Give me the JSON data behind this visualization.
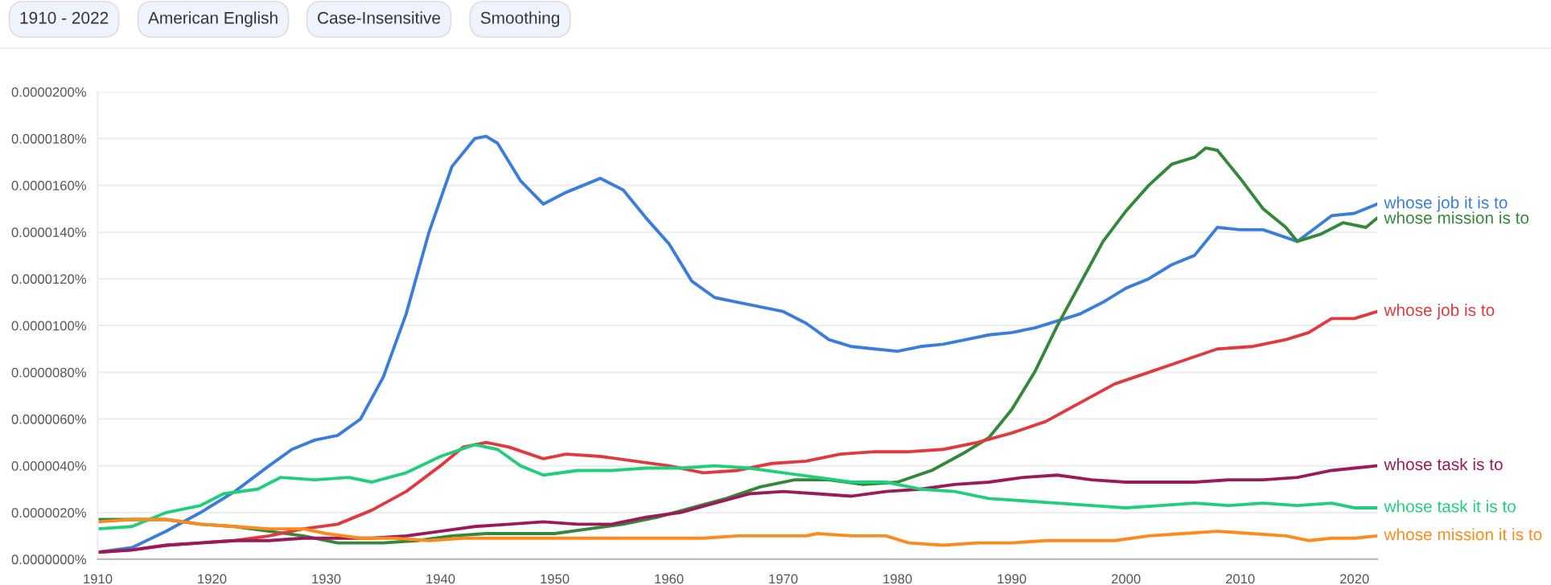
{
  "chart_data": {
    "type": "line",
    "annotations": [
      "1910 - 2022",
      "American English",
      "Case-Insensitive",
      "Smoothing"
    ],
    "xlim": [
      1910,
      2022
    ],
    "xticks": [
      1910,
      1920,
      1930,
      1940,
      1950,
      1960,
      1970,
      1980,
      1990,
      2000,
      2010,
      2020
    ],
    "ylim": [
      0,
      2e-05
    ],
    "yticks": [
      {
        "value": 0,
        "label": "0.0000000%"
      },
      {
        "value": 2e-06,
        "label": "0.0000020%"
      },
      {
        "value": 4e-06,
        "label": "0.0000040%"
      },
      {
        "value": 6e-06,
        "label": "0.0000060%"
      },
      {
        "value": 8e-06,
        "label": "0.0000080%"
      },
      {
        "value": 1e-05,
        "label": "0.0000100%"
      },
      {
        "value": 1.2e-05,
        "label": "0.0000120%"
      },
      {
        "value": 1.4e-05,
        "label": "0.0000140%"
      },
      {
        "value": 1.6e-05,
        "label": "0.0000160%"
      },
      {
        "value": 1.8e-05,
        "label": "0.0000180%"
      },
      {
        "value": 2e-05,
        "label": "0.0000200%"
      }
    ],
    "grid": "y",
    "legend": false,
    "marker": "none",
    "line_style": "solid",
    "series": [
      {
        "name": "whose job it is to",
        "color": "#3b7ddd",
        "x": [
          1910,
          1913,
          1916,
          1919,
          1922,
          1925,
          1927,
          1929,
          1931,
          1933,
          1935,
          1937,
          1939,
          1941,
          1943,
          1944,
          1945,
          1947,
          1949,
          1951,
          1954,
          1956,
          1958,
          1960,
          1962,
          1964,
          1966,
          1968,
          1970,
          1972,
          1974,
          1976,
          1978,
          1980,
          1982,
          1984,
          1986,
          1988,
          1990,
          1992,
          1994,
          1996,
          1998,
          2000,
          2002,
          2004,
          2006,
          2008,
          2010,
          2012,
          2015,
          2018,
          2020,
          2022
        ],
        "values": [
          3e-07,
          5e-07,
          1.2e-06,
          2e-06,
          2.9e-06,
          4e-06,
          4.7e-06,
          5.1e-06,
          5.3e-06,
          6e-06,
          7.8e-06,
          1.05e-05,
          1.4e-05,
          1.68e-05,
          1.8e-05,
          1.81e-05,
          1.78e-05,
          1.62e-05,
          1.52e-05,
          1.57e-05,
          1.63e-05,
          1.58e-05,
          1.46e-05,
          1.35e-05,
          1.19e-05,
          1.12e-05,
          1.1e-05,
          1.08e-05,
          1.06e-05,
          1.01e-05,
          9.4e-06,
          9.1e-06,
          9e-06,
          8.9e-06,
          9.1e-06,
          9.2e-06,
          9.4e-06,
          9.6e-06,
          9.7e-06,
          9.9e-06,
          1.02e-05,
          1.05e-05,
          1.1e-05,
          1.16e-05,
          1.2e-05,
          1.26e-05,
          1.3e-05,
          1.42e-05,
          1.41e-05,
          1.41e-05,
          1.36e-05,
          1.47e-05,
          1.48e-05,
          1.52e-05
        ]
      },
      {
        "name": "whose mission is to",
        "color": "#34883a",
        "x": [
          1910,
          1913,
          1916,
          1919,
          1922,
          1925,
          1928,
          1931,
          1935,
          1938,
          1941,
          1944,
          1947,
          1950,
          1953,
          1956,
          1959,
          1962,
          1965,
          1968,
          1971,
          1974,
          1977,
          1980,
          1983,
          1986,
          1988,
          1990,
          1992,
          1994,
          1996,
          1998,
          2000,
          2002,
          2004,
          2006,
          2007,
          2008,
          2010,
          2012,
          2014,
          2015,
          2017,
          2019,
          2021,
          2022
        ],
        "values": [
          1.7e-06,
          1.7e-06,
          1.7e-06,
          1.5e-06,
          1.4e-06,
          1.2e-06,
          1e-06,
          7e-07,
          7e-07,
          8e-07,
          1e-06,
          1.1e-06,
          1.1e-06,
          1.1e-06,
          1.3e-06,
          1.5e-06,
          1.8e-06,
          2.2e-06,
          2.6e-06,
          3.1e-06,
          3.4e-06,
          3.4e-06,
          3.2e-06,
          3.3e-06,
          3.8e-06,
          4.6e-06,
          5.2e-06,
          6.4e-06,
          8e-06,
          1e-05,
          1.18e-05,
          1.36e-05,
          1.49e-05,
          1.6e-05,
          1.69e-05,
          1.72e-05,
          1.76e-05,
          1.75e-05,
          1.63e-05,
          1.5e-05,
          1.42e-05,
          1.36e-05,
          1.39e-05,
          1.44e-05,
          1.42e-05,
          1.46e-05
        ]
      },
      {
        "name": "whose job is to",
        "color": "#e0393e",
        "x": [
          1910,
          1913,
          1916,
          1919,
          1922,
          1925,
          1928,
          1931,
          1934,
          1937,
          1940,
          1942,
          1944,
          1946,
          1949,
          1951,
          1954,
          1957,
          1960,
          1963,
          1966,
          1969,
          1972,
          1975,
          1978,
          1981,
          1984,
          1987,
          1990,
          1993,
          1996,
          1999,
          2002,
          2005,
          2008,
          2011,
          2014,
          2016,
          2018,
          2020,
          2022
        ],
        "values": [
          3e-07,
          4e-07,
          6e-07,
          7e-07,
          8e-07,
          1e-06,
          1.3e-06,
          1.5e-06,
          2.1e-06,
          2.9e-06,
          4e-06,
          4.8e-06,
          5e-06,
          4.8e-06,
          4.3e-06,
          4.5e-06,
          4.4e-06,
          4.2e-06,
          4e-06,
          3.7e-06,
          3.8e-06,
          4.1e-06,
          4.2e-06,
          4.5e-06,
          4.6e-06,
          4.6e-06,
          4.7e-06,
          5e-06,
          5.4e-06,
          5.9e-06,
          6.7e-06,
          7.5e-06,
          8e-06,
          8.5e-06,
          9e-06,
          9.1e-06,
          9.4e-06,
          9.7e-06,
          1.03e-05,
          1.03e-05,
          1.06e-05
        ]
      },
      {
        "name": "whose task is to",
        "color": "#9b1b5a",
        "x": [
          1910,
          1913,
          1916,
          1919,
          1922,
          1925,
          1928,
          1931,
          1934,
          1937,
          1940,
          1943,
          1946,
          1949,
          1952,
          1955,
          1958,
          1961,
          1964,
          1967,
          1970,
          1973,
          1976,
          1979,
          1982,
          1985,
          1988,
          1991,
          1994,
          1997,
          2000,
          2003,
          2006,
          2009,
          2012,
          2015,
          2018,
          2020,
          2022
        ],
        "values": [
          3e-07,
          4e-07,
          6e-07,
          7e-07,
          8e-07,
          8e-07,
          9e-07,
          9e-07,
          9e-07,
          1e-06,
          1.2e-06,
          1.4e-06,
          1.5e-06,
          1.6e-06,
          1.5e-06,
          1.5e-06,
          1.8e-06,
          2e-06,
          2.4e-06,
          2.8e-06,
          2.9e-06,
          2.8e-06,
          2.7e-06,
          2.9e-06,
          3e-06,
          3.2e-06,
          3.3e-06,
          3.5e-06,
          3.6e-06,
          3.4e-06,
          3.3e-06,
          3.3e-06,
          3.3e-06,
          3.4e-06,
          3.4e-06,
          3.5e-06,
          3.8e-06,
          3.9e-06,
          4e-06
        ]
      },
      {
        "name": "whose task it is to",
        "color": "#20cf7c",
        "x": [
          1910,
          1913,
          1916,
          1919,
          1921,
          1924,
          1926,
          1929,
          1932,
          1934,
          1937,
          1940,
          1943,
          1945,
          1947,
          1949,
          1952,
          1955,
          1958,
          1961,
          1964,
          1967,
          1970,
          1973,
          1976,
          1979,
          1982,
          1985,
          1988,
          1991,
          1994,
          1997,
          2000,
          2003,
          2006,
          2009,
          2012,
          2015,
          2018,
          2020,
          2022
        ],
        "values": [
          1.3e-06,
          1.4e-06,
          2e-06,
          2.3e-06,
          2.8e-06,
          3e-06,
          3.5e-06,
          3.4e-06,
          3.5e-06,
          3.3e-06,
          3.7e-06,
          4.4e-06,
          4.9e-06,
          4.7e-06,
          4e-06,
          3.6e-06,
          3.8e-06,
          3.8e-06,
          3.9e-06,
          3.9e-06,
          4e-06,
          3.9e-06,
          3.7e-06,
          3.5e-06,
          3.3e-06,
          3.3e-06,
          3e-06,
          2.9e-06,
          2.6e-06,
          2.5e-06,
          2.4e-06,
          2.3e-06,
          2.2e-06,
          2.3e-06,
          2.4e-06,
          2.3e-06,
          2.4e-06,
          2.3e-06,
          2.4e-06,
          2.2e-06,
          2.2e-06
        ]
      },
      {
        "name": "whose mission it is to",
        "color": "#ff8a1c",
        "x": [
          1910,
          1913,
          1916,
          1919,
          1922,
          1925,
          1928,
          1930,
          1933,
          1936,
          1939,
          1942,
          1945,
          1948,
          1951,
          1954,
          1957,
          1960,
          1963,
          1966,
          1969,
          1972,
          1973,
          1976,
          1979,
          1981,
          1984,
          1987,
          1990,
          1993,
          1996,
          1999,
          2002,
          2005,
          2008,
          2011,
          2014,
          2016,
          2018,
          2020,
          2022
        ],
        "values": [
          1.6e-06,
          1.7e-06,
          1.7e-06,
          1.5e-06,
          1.4e-06,
          1.3e-06,
          1.3e-06,
          1.1e-06,
          9e-07,
          9e-07,
          8e-07,
          9e-07,
          9e-07,
          9e-07,
          9e-07,
          9e-07,
          9e-07,
          9e-07,
          9e-07,
          1e-06,
          1e-06,
          1e-06,
          1.1e-06,
          1e-06,
          1e-06,
          7e-07,
          6e-07,
          7e-07,
          7e-07,
          8e-07,
          8e-07,
          8e-07,
          1e-06,
          1.1e-06,
          1.2e-06,
          1.1e-06,
          1e-06,
          8e-07,
          9e-07,
          9e-07,
          1e-06
        ]
      }
    ]
  }
}
